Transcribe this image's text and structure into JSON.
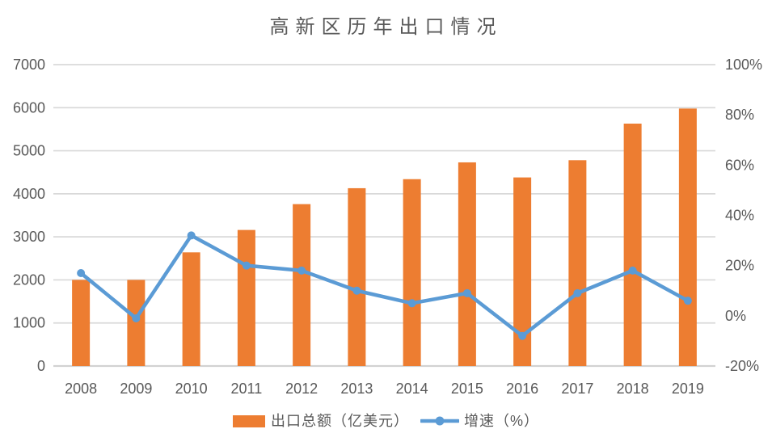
{
  "page": {
    "background": "#FFFFFF",
    "text_color": "#595959"
  },
  "chart_data": {
    "type": "bar",
    "subtype": "combo-bar-line-dual-axis",
    "title": "高新区历年出口情况",
    "categories": [
      "2008",
      "2009",
      "2010",
      "2011",
      "2012",
      "2013",
      "2014",
      "2015",
      "2016",
      "2017",
      "2018",
      "2019"
    ],
    "series": [
      {
        "name": "出口总额（亿美元）",
        "type": "bar",
        "axis": "left",
        "color": "#ED7D31",
        "values": [
          2000,
          2000,
          2640,
          3160,
          3760,
          4130,
          4340,
          4730,
          4380,
          4780,
          5630,
          5980
        ]
      },
      {
        "name": "增速（%）",
        "type": "line",
        "axis": "right",
        "color": "#5B9BD5",
        "marker": "circle",
        "values": [
          17,
          -1,
          32,
          20,
          18,
          10,
          5,
          9,
          -8,
          9,
          18,
          6
        ]
      }
    ],
    "left_axis": {
      "min": 0,
      "max": 7000,
      "step": 1000,
      "tick_labels": [
        "0",
        "1000",
        "2000",
        "3000",
        "4000",
        "5000",
        "6000",
        "7000"
      ]
    },
    "right_axis": {
      "min": -20,
      "max": 100,
      "step": 20,
      "tick_labels": [
        "-20%",
        "0%",
        "20%",
        "40%",
        "60%",
        "80%",
        "100%"
      ]
    },
    "grid": true,
    "gridline_color": "#D9D9D9",
    "axis_line_color": "#D2D2D2",
    "text_color": "#595959",
    "legend_position": "bottom"
  }
}
